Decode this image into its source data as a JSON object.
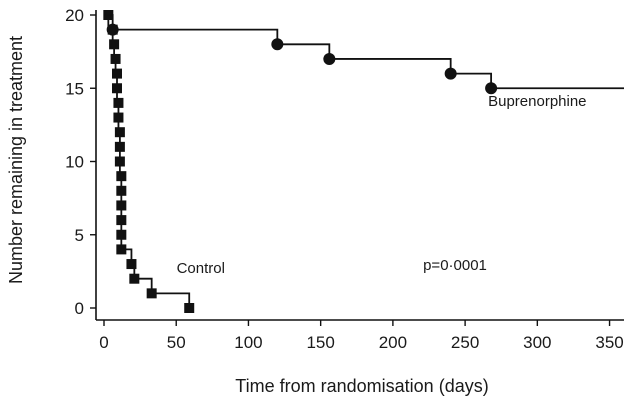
{
  "chart_data": {
    "type": "line",
    "xlabel": "Time from randomisation (days)",
    "ylabel": "Number remaining in treatment",
    "xlim": [
      0,
      360
    ],
    "ylim": [
      0,
      20
    ],
    "x_ticks": [
      0,
      50,
      100,
      150,
      200,
      250,
      300,
      350
    ],
    "y_ticks": [
      0,
      5,
      10,
      15,
      20
    ],
    "x_tick_labels": [
      "0",
      "50",
      "100",
      "150",
      "200",
      "250",
      "300",
      "350"
    ],
    "y_tick_labels": [
      "0",
      "5",
      "10",
      "15",
      "20"
    ],
    "grid": false,
    "series": [
      {
        "name": "Control",
        "color": "#111111",
        "marker": "square",
        "step_points": [
          [
            0,
            20
          ],
          [
            3,
            20
          ],
          [
            3,
            19
          ],
          [
            6,
            19
          ],
          [
            6,
            18
          ],
          [
            7,
            18
          ],
          [
            7,
            17
          ],
          [
            8,
            17
          ],
          [
            8,
            16
          ],
          [
            9,
            16
          ],
          [
            9,
            15
          ],
          [
            9,
            14
          ],
          [
            10,
            14
          ],
          [
            10,
            13
          ],
          [
            10,
            12
          ],
          [
            11,
            12
          ],
          [
            11,
            11
          ],
          [
            11,
            10
          ],
          [
            11,
            9
          ],
          [
            12,
            9
          ],
          [
            12,
            8
          ],
          [
            12,
            7
          ],
          [
            12,
            6
          ],
          [
            12,
            5
          ],
          [
            12,
            4
          ],
          [
            19,
            4
          ],
          [
            19,
            3
          ],
          [
            21,
            3
          ],
          [
            21,
            2
          ],
          [
            33,
            2
          ],
          [
            33,
            1
          ],
          [
            59,
            1
          ],
          [
            59,
            0
          ]
        ],
        "markers": [
          [
            3,
            20
          ],
          [
            6,
            19
          ],
          [
            7,
            18
          ],
          [
            8,
            17
          ],
          [
            9,
            16
          ],
          [
            9,
            15
          ],
          [
            10,
            14
          ],
          [
            10,
            13
          ],
          [
            11,
            12
          ],
          [
            11,
            11
          ],
          [
            11,
            10
          ],
          [
            12,
            9
          ],
          [
            12,
            8
          ],
          [
            12,
            7
          ],
          [
            12,
            6
          ],
          [
            12,
            5
          ],
          [
            12,
            4
          ],
          [
            19,
            3
          ],
          [
            21,
            2
          ],
          [
            33,
            1
          ],
          [
            59,
            0
          ]
        ]
      },
      {
        "name": "Buprenorphine",
        "color": "#111111",
        "marker": "circle",
        "step_points": [
          [
            0,
            20
          ],
          [
            6,
            20
          ],
          [
            6,
            19
          ],
          [
            120,
            19
          ],
          [
            120,
            18
          ],
          [
            156,
            18
          ],
          [
            156,
            17
          ],
          [
            240,
            17
          ],
          [
            240,
            16
          ],
          [
            268,
            16
          ],
          [
            268,
            15
          ],
          [
            360,
            15
          ]
        ],
        "markers": [
          [
            6,
            19
          ],
          [
            120,
            18
          ],
          [
            156,
            17
          ],
          [
            240,
            16
          ],
          [
            268,
            15
          ]
        ]
      }
    ],
    "annotations": [
      {
        "text": "Buprenorphine",
        "x": 300,
        "y": 13.8
      },
      {
        "text": "Control",
        "x": 67,
        "y": 2.4
      },
      {
        "text": "p=0·0001",
        "x": 243,
        "y": 2.6
      }
    ]
  }
}
